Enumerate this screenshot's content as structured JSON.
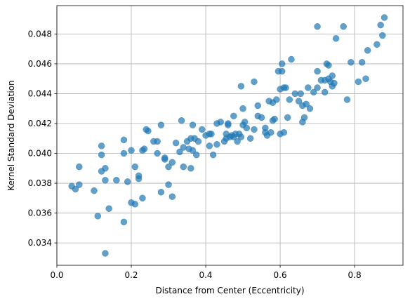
{
  "chart_data": {
    "type": "scatter",
    "title": "",
    "xlabel": "Distance from Center (Eccentricity)",
    "ylabel": "Kernel Standard Deviation",
    "xlim": [
      0.0,
      0.93
    ],
    "ylim": [
      0.0325,
      0.0499
    ],
    "xticks": [
      0.0,
      0.2,
      0.4,
      0.6,
      0.8
    ],
    "xtick_labels": [
      "0.0",
      "0.2",
      "0.4",
      "0.6",
      "0.8"
    ],
    "yticks": [
      0.034,
      0.036,
      0.038,
      0.04,
      0.042,
      0.044,
      0.046,
      0.048
    ],
    "ytick_labels": [
      "0.034",
      "0.036",
      "0.038",
      "0.040",
      "0.042",
      "0.044",
      "0.046",
      "0.048"
    ],
    "grid": true,
    "marker_color": "#1f77b4",
    "marker_alpha": 0.7,
    "points": [
      [
        0.04,
        0.0378
      ],
      [
        0.05,
        0.0376
      ],
      [
        0.06,
        0.0391
      ],
      [
        0.06,
        0.0379
      ],
      [
        0.1,
        0.0375
      ],
      [
        0.11,
        0.0358
      ],
      [
        0.12,
        0.0388
      ],
      [
        0.12,
        0.0399
      ],
      [
        0.12,
        0.0405
      ],
      [
        0.13,
        0.039
      ],
      [
        0.13,
        0.0382
      ],
      [
        0.13,
        0.0333
      ],
      [
        0.14,
        0.0363
      ],
      [
        0.16,
        0.0382
      ],
      [
        0.18,
        0.04
      ],
      [
        0.18,
        0.0409
      ],
      [
        0.18,
        0.0354
      ],
      [
        0.19,
        0.0381
      ],
      [
        0.2,
        0.0402
      ],
      [
        0.2,
        0.0367
      ],
      [
        0.21,
        0.0366
      ],
      [
        0.21,
        0.0391
      ],
      [
        0.22,
        0.0383
      ],
      [
        0.22,
        0.0385
      ],
      [
        0.23,
        0.037
      ],
      [
        0.23,
        0.0402
      ],
      [
        0.235,
        0.0403
      ],
      [
        0.24,
        0.0416
      ],
      [
        0.245,
        0.0415
      ],
      [
        0.26,
        0.0408
      ],
      [
        0.27,
        0.04
      ],
      [
        0.27,
        0.0408
      ],
      [
        0.28,
        0.0374
      ],
      [
        0.28,
        0.0419
      ],
      [
        0.29,
        0.0396
      ],
      [
        0.29,
        0.0397
      ],
      [
        0.3,
        0.0391
      ],
      [
        0.3,
        0.0379
      ],
      [
        0.31,
        0.0394
      ],
      [
        0.31,
        0.0371
      ],
      [
        0.32,
        0.0407
      ],
      [
        0.33,
        0.0401
      ],
      [
        0.335,
        0.0422
      ],
      [
        0.34,
        0.0391
      ],
      [
        0.34,
        0.0404
      ],
      [
        0.35,
        0.0408
      ],
      [
        0.355,
        0.0403
      ],
      [
        0.36,
        0.041
      ],
      [
        0.36,
        0.039
      ],
      [
        0.365,
        0.0402
      ],
      [
        0.365,
        0.0419
      ],
      [
        0.37,
        0.041
      ],
      [
        0.375,
        0.0399
      ],
      [
        0.38,
        0.0408
      ],
      [
        0.39,
        0.0416
      ],
      [
        0.4,
        0.0412
      ],
      [
        0.41,
        0.0405
      ],
      [
        0.41,
        0.0413
      ],
      [
        0.415,
        0.0413
      ],
      [
        0.42,
        0.0399
      ],
      [
        0.43,
        0.0406
      ],
      [
        0.43,
        0.042
      ],
      [
        0.44,
        0.0421
      ],
      [
        0.45,
        0.0408
      ],
      [
        0.455,
        0.041
      ],
      [
        0.455,
        0.0413
      ],
      [
        0.46,
        0.042
      ],
      [
        0.46,
        0.0419
      ],
      [
        0.465,
        0.0411
      ],
      [
        0.47,
        0.0412
      ],
      [
        0.475,
        0.0425
      ],
      [
        0.475,
        0.0411
      ],
      [
        0.48,
        0.0413
      ],
      [
        0.485,
        0.0408
      ],
      [
        0.49,
        0.0413
      ],
      [
        0.495,
        0.0411
      ],
      [
        0.495,
        0.0445
      ],
      [
        0.5,
        0.0419
      ],
      [
        0.5,
        0.043
      ],
      [
        0.505,
        0.0421
      ],
      [
        0.51,
        0.0417
      ],
      [
        0.52,
        0.041
      ],
      [
        0.53,
        0.0416
      ],
      [
        0.53,
        0.0448
      ],
      [
        0.54,
        0.0432
      ],
      [
        0.54,
        0.0425
      ],
      [
        0.55,
        0.0424
      ],
      [
        0.56,
        0.0414
      ],
      [
        0.56,
        0.0417
      ],
      [
        0.565,
        0.0412
      ],
      [
        0.57,
        0.0435
      ],
      [
        0.575,
        0.0414
      ],
      [
        0.58,
        0.0434
      ],
      [
        0.58,
        0.0422
      ],
      [
        0.585,
        0.0423
      ],
      [
        0.59,
        0.0436
      ],
      [
        0.595,
        0.0455
      ],
      [
        0.6,
        0.0443
      ],
      [
        0.6,
        0.0413
      ],
      [
        0.605,
        0.046
      ],
      [
        0.605,
        0.0455
      ],
      [
        0.61,
        0.0414
      ],
      [
        0.61,
        0.0444
      ],
      [
        0.615,
        0.0444
      ],
      [
        0.62,
        0.0424
      ],
      [
        0.625,
        0.0436
      ],
      [
        0.63,
        0.0463
      ],
      [
        0.64,
        0.044
      ],
      [
        0.65,
        0.0435
      ],
      [
        0.655,
        0.044
      ],
      [
        0.66,
        0.0421
      ],
      [
        0.66,
        0.0432
      ],
      [
        0.665,
        0.0424
      ],
      [
        0.67,
        0.0433
      ],
      [
        0.675,
        0.0444
      ],
      [
        0.68,
        0.043
      ],
      [
        0.69,
        0.0441
      ],
      [
        0.7,
        0.0455
      ],
      [
        0.7,
        0.0444
      ],
      [
        0.7,
        0.0485
      ],
      [
        0.71,
        0.0449
      ],
      [
        0.72,
        0.0441
      ],
      [
        0.72,
        0.0449
      ],
      [
        0.725,
        0.046
      ],
      [
        0.73,
        0.045
      ],
      [
        0.73,
        0.0459
      ],
      [
        0.735,
        0.0448
      ],
      [
        0.74,
        0.0452
      ],
      [
        0.74,
        0.0445
      ],
      [
        0.745,
        0.0447
      ],
      [
        0.75,
        0.0477
      ],
      [
        0.77,
        0.0485
      ],
      [
        0.78,
        0.0436
      ],
      [
        0.79,
        0.0461
      ],
      [
        0.81,
        0.0448
      ],
      [
        0.82,
        0.0461
      ],
      [
        0.83,
        0.045
      ],
      [
        0.835,
        0.0469
      ],
      [
        0.86,
        0.0473
      ],
      [
        0.87,
        0.0486
      ],
      [
        0.875,
        0.0479
      ],
      [
        0.88,
        0.0491
      ]
    ]
  }
}
